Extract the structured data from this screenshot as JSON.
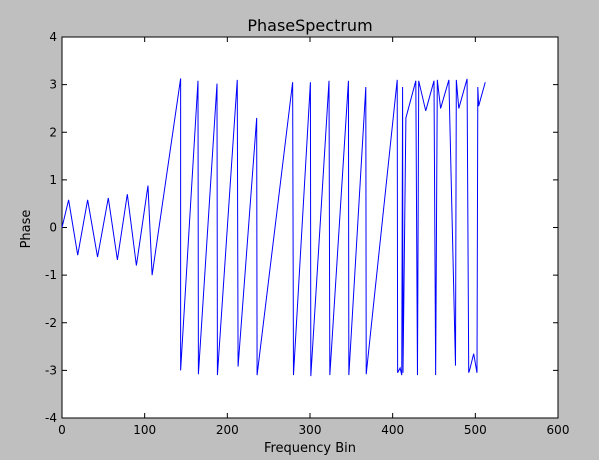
{
  "chart_data": {
    "type": "line",
    "title": "PhaseSpectrum",
    "xlabel": "Frequency Bin",
    "ylabel": "Phase",
    "xlim": [
      0,
      600
    ],
    "ylim": [
      -4,
      4
    ],
    "xticks": [
      0,
      100,
      200,
      300,
      400,
      500,
      600
    ],
    "yticks": [
      -4,
      -3,
      -2,
      -1,
      0,
      1,
      2,
      3,
      4
    ],
    "grid": false,
    "legend": "none",
    "line_color": "#0000ff",
    "background": "#bfbfbf",
    "plot_background": "#ffffff",
    "series": [
      {
        "x": [
          0,
          8,
          19,
          31,
          43,
          56,
          67,
          79,
          90,
          104,
          109,
          143.5,
          143.5,
          164.5,
          165,
          187.5,
          188,
          212,
          213,
          235.5,
          236,
          279,
          280,
          300.5,
          301,
          323,
          324,
          346.5,
          347,
          367.5,
          368,
          405.5,
          406,
          409,
          411,
          412,
          412.5,
          416,
          428,
          430,
          431.5,
          440,
          450,
          452,
          454,
          458,
          468,
          476,
          477,
          480,
          490,
          492,
          493,
          498,
          502,
          503,
          504,
          512
        ],
        "y": [
          0,
          0.58,
          -0.58,
          0.58,
          -0.62,
          0.62,
          -0.68,
          0.7,
          -0.8,
          0.88,
          -1.0,
          3.13,
          -3.0,
          3.08,
          -3.08,
          3.02,
          -3.1,
          3.1,
          -2.92,
          2.3,
          -3.1,
          3.05,
          -3.1,
          3.05,
          -3.12,
          3.08,
          -3.1,
          3.08,
          -3.1,
          2.95,
          -3.08,
          3.1,
          -3.05,
          -2.95,
          -3.1,
          2.95,
          -3.05,
          2.3,
          3.08,
          -3.1,
          3.08,
          2.45,
          3.08,
          -3.1,
          3.1,
          2.5,
          3.1,
          -2.9,
          3.1,
          2.5,
          3.12,
          -3.05,
          -3.0,
          -2.65,
          -3.05,
          2.95,
          2.55,
          3.05
        ]
      }
    ]
  }
}
